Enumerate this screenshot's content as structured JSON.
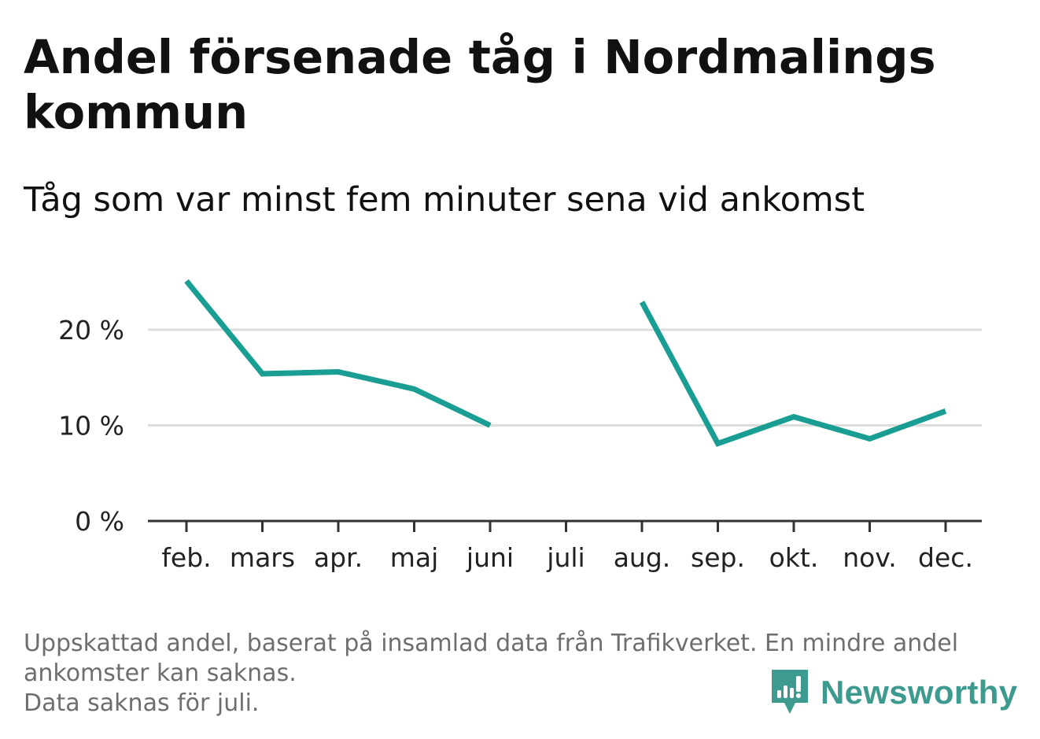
{
  "title": "Andel försenade tåg i Nordmalings kommun",
  "subtitle": "Tåg som var minst fem minuter sena vid ankomst",
  "footer": {
    "line1": "Uppskattad andel, baserat på insamlad data från Trafikverket. En mindre andel",
    "line2": "ankomster kan saknas.",
    "line3": "Data saknas för juli."
  },
  "logo": {
    "text": "Newsworthy",
    "icon": "newsworthy-logo-icon",
    "color": "#3d9a8f"
  },
  "colors": {
    "line": "#1a9e94",
    "grid": "#dddddd",
    "axis": "#333333"
  },
  "chart_data": {
    "type": "line",
    "categories": [
      "feb.",
      "mars",
      "apr.",
      "maj",
      "juni",
      "juli",
      "aug.",
      "sep.",
      "okt.",
      "nov.",
      "dec."
    ],
    "series": [
      {
        "values": [
          25.1,
          15.4,
          15.6,
          13.8,
          10.0,
          null,
          22.9,
          8.1,
          10.9,
          8.6,
          11.5
        ]
      }
    ],
    "yticks": [
      0,
      10,
      20
    ],
    "ytick_labels": [
      "0 %",
      "10 %",
      "20 %"
    ],
    "ylim": [
      0,
      25
    ],
    "grid": true,
    "title": "Andel försenade tåg i Nordmalings kommun",
    "xlabel": "",
    "ylabel": ""
  }
}
